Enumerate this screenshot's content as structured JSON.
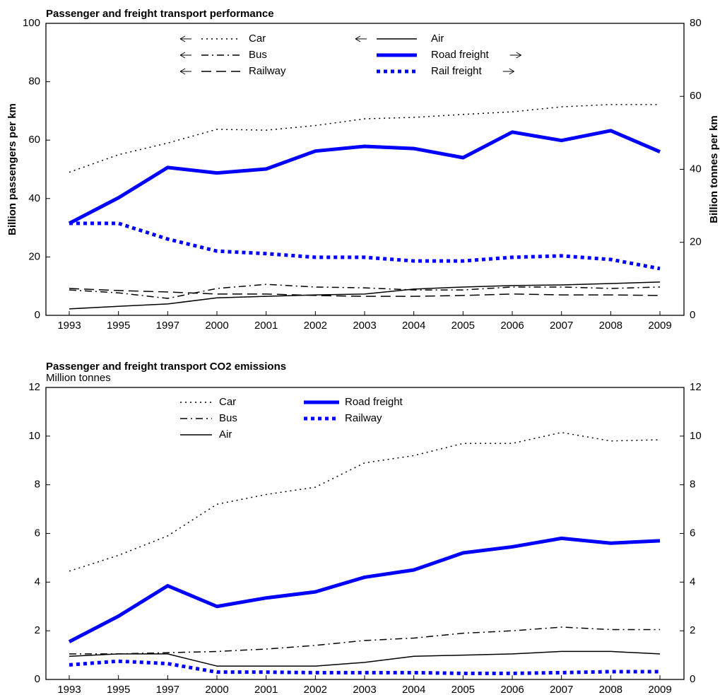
{
  "chart_data": [
    {
      "type": "line",
      "title": "Passenger and freight transport performance",
      "ylabel": "Billion passengers per km",
      "y2label": "Billion tonnes per km",
      "categories": [
        "1993",
        "1995",
        "1997",
        "2000",
        "2001",
        "2002",
        "2003",
        "2004",
        "2005",
        "2006",
        "2007",
        "2008",
        "2009"
      ],
      "ylim": [
        0,
        100
      ],
      "yticks": [
        0,
        20,
        40,
        60,
        80,
        100
      ],
      "y2lim": [
        0,
        80
      ],
      "y2ticks": [
        0,
        20,
        40,
        60,
        80
      ],
      "series": [
        {
          "name": "Car",
          "color": "#000000",
          "linestyle": "dotted",
          "linewidth": 1.5,
          "values": [
            49,
            55,
            59,
            63.7,
            63.4,
            65,
            67.3,
            67.8,
            68.8,
            69.7,
            71.4,
            72.2,
            72.2
          ]
        },
        {
          "name": "Bus",
          "color": "#000000",
          "linestyle": "dashdot",
          "linewidth": 1.5,
          "values": [
            8.7,
            7.7,
            5.8,
            9.2,
            10.6,
            9.7,
            9.4,
            8.7,
            8.7,
            9.7,
            9.7,
            9.2,
            9.7
          ]
        },
        {
          "name": "Railway",
          "color": "#000000",
          "linestyle": "dashed",
          "linewidth": 1.5,
          "values": [
            9.2,
            8.5,
            8,
            7.3,
            7.3,
            6.8,
            6.5,
            6.5,
            6.8,
            7.3,
            7,
            7,
            6.8
          ]
        },
        {
          "name": "Air",
          "color": "#000000",
          "linestyle": "solid",
          "linewidth": 1.5,
          "values": [
            2.2,
            3.1,
            3.9,
            6,
            6.5,
            7,
            7.3,
            9,
            9.7,
            10.2,
            10.4,
            10.9,
            11.4
          ]
        },
        {
          "name": "Road freight",
          "color": "#0000ff",
          "linestyle": "solid",
          "linewidth": 5,
          "axis": "y2",
          "values": [
            25.2,
            32.2,
            40.5,
            39,
            40.1,
            45,
            46.3,
            45.7,
            43.2,
            50.2,
            47.9,
            50.6,
            44.8
          ]
        },
        {
          "name": "Rail freight",
          "color": "#0000ff",
          "linestyle": "dotted",
          "linewidth": 5,
          "axis": "y2",
          "values": [
            25.2,
            25.2,
            20.9,
            17.6,
            16.9,
            15.9,
            15.9,
            14.9,
            14.9,
            15.9,
            16.3,
            15.3,
            12.8
          ]
        }
      ]
    },
    {
      "type": "line",
      "title": "Passenger and freight transport CO2 emissions",
      "subtitle": "Million tonnes",
      "categories": [
        "1993",
        "1995",
        "1997",
        "2000",
        "2001",
        "2002",
        "2003",
        "2004",
        "2005",
        "2006",
        "2007",
        "2008",
        "2009"
      ],
      "ylim": [
        0,
        12
      ],
      "yticks": [
        0,
        2,
        4,
        6,
        8,
        10,
        12
      ],
      "y2lim": [
        0,
        12
      ],
      "y2ticks": [
        0,
        2,
        4,
        6,
        8,
        10,
        12
      ],
      "series": [
        {
          "name": "Car",
          "color": "#000000",
          "linestyle": "dotted",
          "linewidth": 1.5,
          "values": [
            4.45,
            5.1,
            5.9,
            7.2,
            7.6,
            7.9,
            8.9,
            9.2,
            9.7,
            9.7,
            10.15,
            9.8,
            9.85
          ]
        },
        {
          "name": "Bus",
          "color": "#000000",
          "linestyle": "dashdot",
          "linewidth": 1.5,
          "values": [
            1.05,
            1.05,
            1.1,
            1.15,
            1.25,
            1.4,
            1.6,
            1.7,
            1.9,
            2,
            2.15,
            2.05,
            2.05
          ]
        },
        {
          "name": "Air",
          "color": "#000000",
          "linestyle": "solid",
          "linewidth": 1.5,
          "values": [
            0.95,
            1.05,
            1.05,
            0.55,
            0.55,
            0.55,
            0.7,
            0.95,
            1,
            1.05,
            1.15,
            1.15,
            1.05
          ]
        },
        {
          "name": "Road freight",
          "color": "#0000ff",
          "linestyle": "solid",
          "linewidth": 5,
          "values": [
            1.55,
            2.6,
            3.85,
            3,
            3.35,
            3.6,
            4.2,
            4.5,
            5.2,
            5.45,
            5.8,
            5.6,
            5.7
          ]
        },
        {
          "name": "Railway",
          "color": "#0000ff",
          "linestyle": "dotted",
          "linewidth": 5,
          "values": [
            0.6,
            0.75,
            0.65,
            0.3,
            0.3,
            0.28,
            0.28,
            0.28,
            0.25,
            0.25,
            0.28,
            0.32,
            0.32
          ]
        }
      ]
    }
  ]
}
